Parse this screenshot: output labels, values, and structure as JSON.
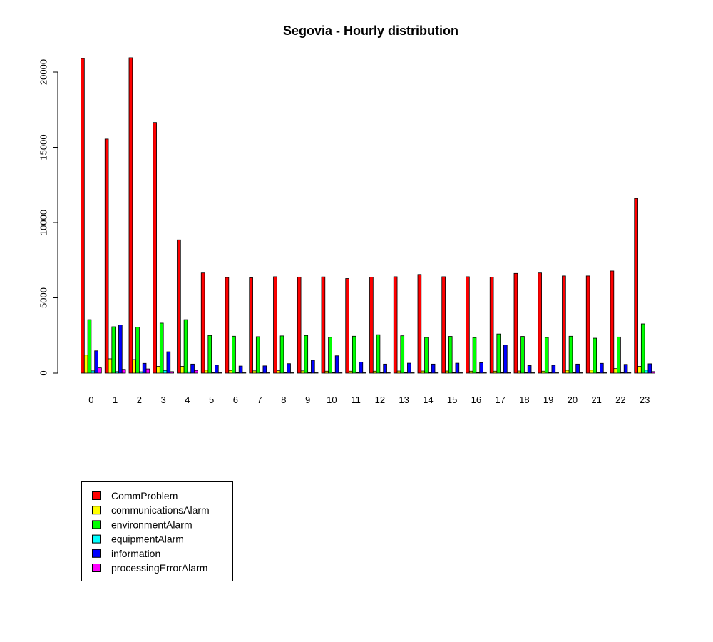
{
  "chart_data": {
    "type": "bar",
    "title": "Segovia - Hourly distribution",
    "xlabel": "",
    "ylabel": "",
    "ylim": [
      0,
      21000
    ],
    "yticks": [
      0,
      5000,
      10000,
      15000,
      20000
    ],
    "grid": false,
    "legend_position": "bottom-left",
    "categories": [
      "0",
      "1",
      "2",
      "3",
      "4",
      "5",
      "6",
      "7",
      "8",
      "9",
      "10",
      "11",
      "12",
      "13",
      "14",
      "15",
      "16",
      "17",
      "18",
      "19",
      "20",
      "21",
      "22",
      "23"
    ],
    "series": [
      {
        "name": "CommProblem",
        "color": "#ff0000",
        "values": [
          20900,
          15550,
          20950,
          16650,
          8850,
          6650,
          6350,
          6330,
          6400,
          6380,
          6390,
          6280,
          6370,
          6400,
          6550,
          6400,
          6400,
          6370,
          6620,
          6650,
          6450,
          6450,
          6780,
          11600
        ]
      },
      {
        "name": "communicationsAlarm",
        "color": "#ffff00",
        "values": [
          1200,
          950,
          900,
          450,
          450,
          200,
          180,
          150,
          160,
          150,
          130,
          130,
          130,
          140,
          140,
          140,
          130,
          130,
          140,
          130,
          190,
          200,
          300,
          450
        ]
      },
      {
        "name": "environmentAlarm",
        "color": "#00ff00",
        "values": [
          3550,
          3080,
          3050,
          3320,
          3550,
          2500,
          2450,
          2420,
          2470,
          2500,
          2380,
          2450,
          2550,
          2480,
          2370,
          2440,
          2360,
          2600,
          2440,
          2370,
          2450,
          2320,
          2400,
          3270
        ]
      },
      {
        "name": "equipmentAlarm",
        "color": "#00ffff",
        "values": [
          150,
          100,
          90,
          180,
          80,
          40,
          30,
          30,
          30,
          30,
          30,
          30,
          30,
          30,
          30,
          30,
          30,
          30,
          30,
          30,
          30,
          30,
          30,
          200
        ]
      },
      {
        "name": "information",
        "color": "#0000ff",
        "values": [
          1480,
          3200,
          650,
          1420,
          600,
          530,
          470,
          480,
          630,
          850,
          1150,
          730,
          600,
          660,
          600,
          660,
          690,
          1860,
          500,
          520,
          600,
          650,
          580,
          620
        ]
      },
      {
        "name": "processingErrorAlarm",
        "color": "#ff00ff",
        "values": [
          350,
          250,
          280,
          100,
          180,
          20,
          20,
          20,
          20,
          20,
          20,
          20,
          20,
          20,
          20,
          20,
          20,
          20,
          20,
          20,
          20,
          20,
          20,
          100
        ]
      }
    ]
  }
}
